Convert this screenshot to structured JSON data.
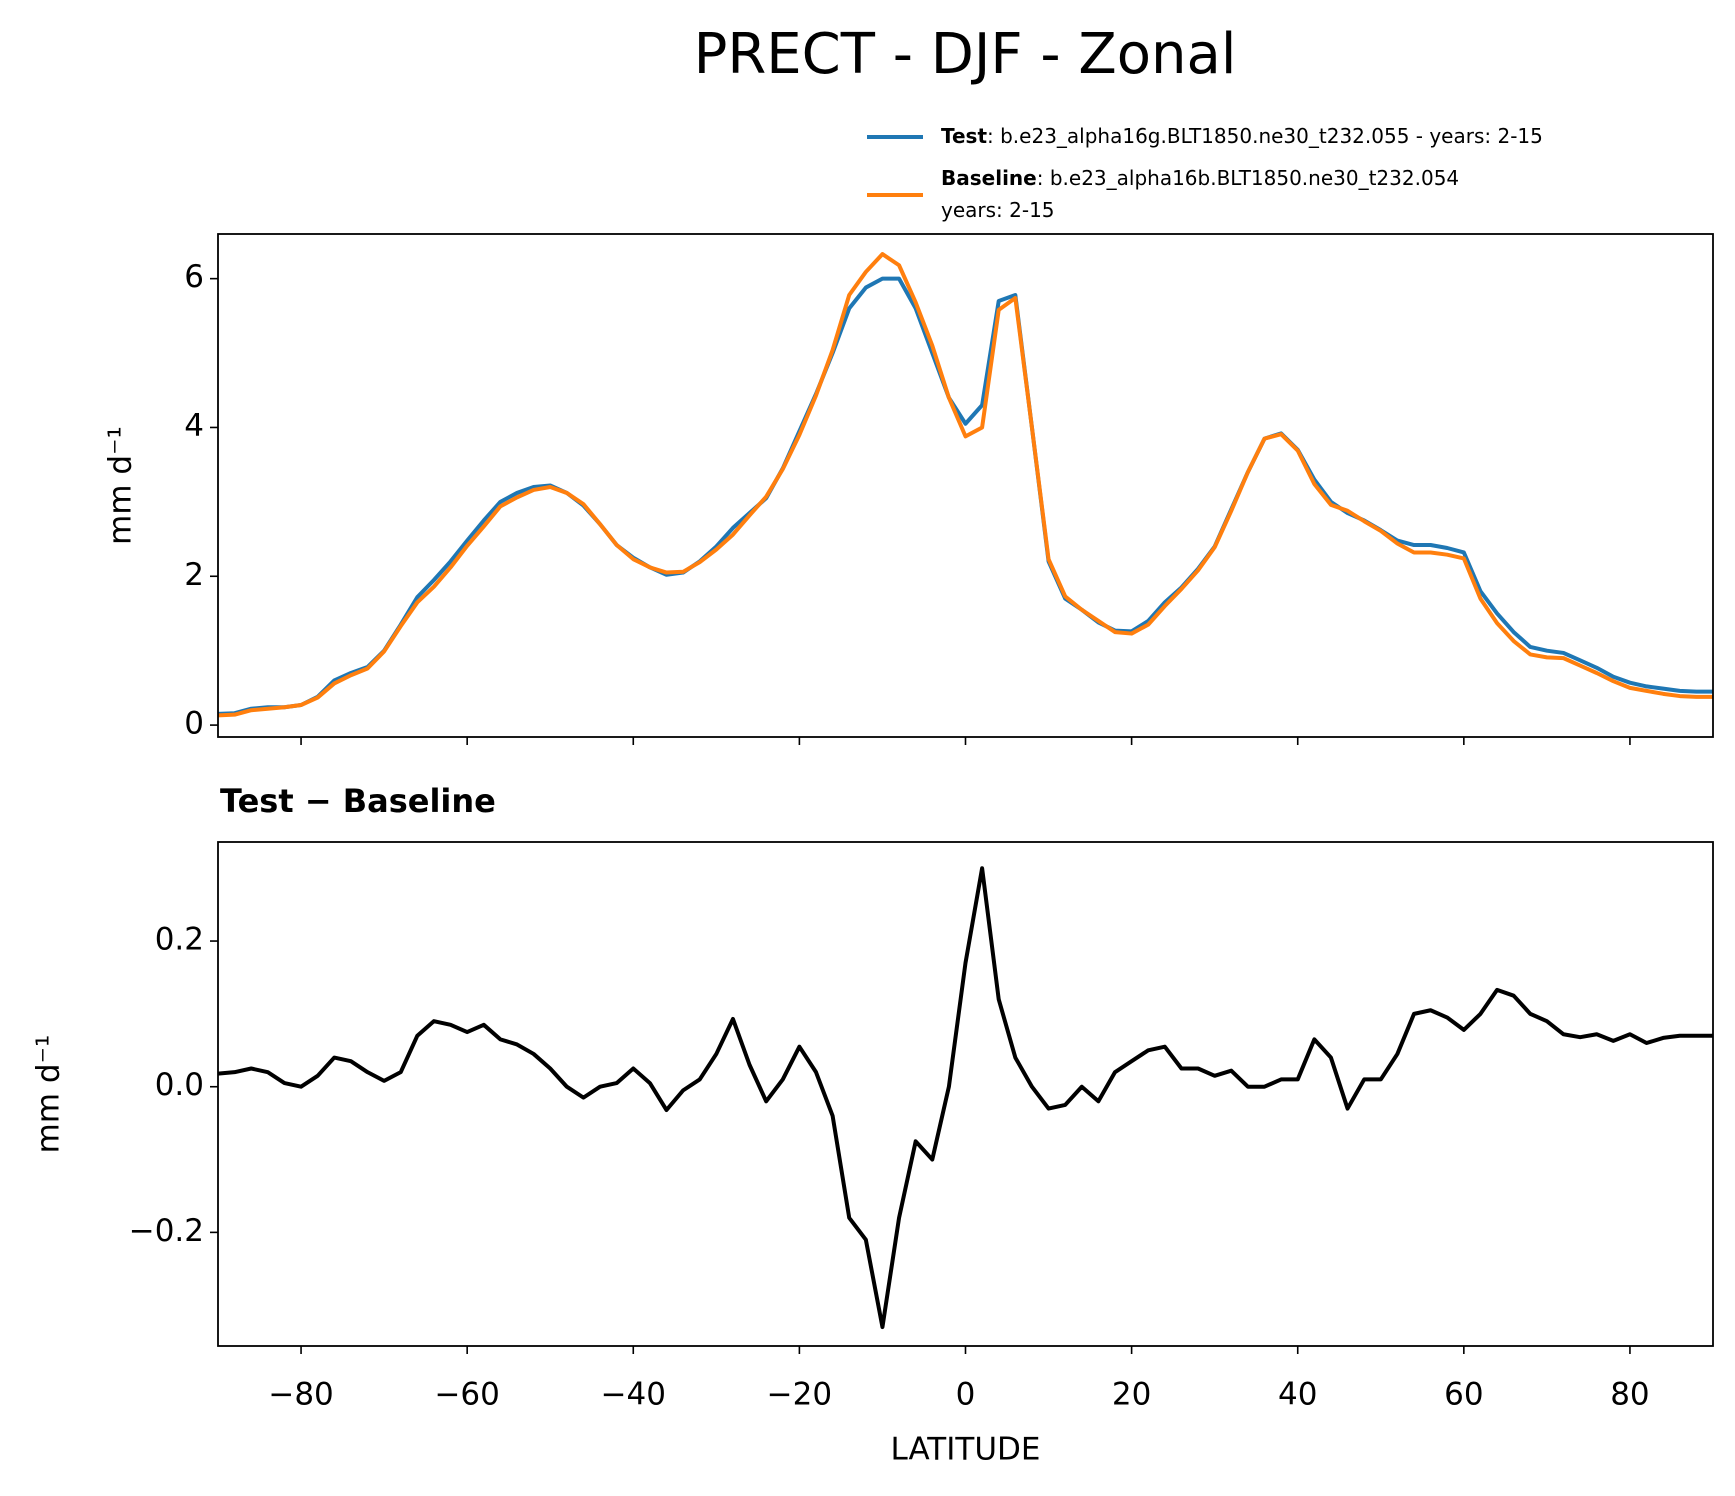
{
  "title": "PRECT - DJF - Zonal",
  "chart_data": [
    {
      "type": "line",
      "ylabel": "mm d⁻¹",
      "x": [
        -90,
        -88,
        -86,
        -84,
        -82,
        -80,
        -78,
        -76,
        -74,
        -72,
        -70,
        -68,
        -66,
        -64,
        -62,
        -60,
        -58,
        -56,
        -54,
        -52,
        -50,
        -48,
        -46,
        -44,
        -42,
        -40,
        -38,
        -36,
        -34,
        -32,
        -30,
        -28,
        -26,
        -24,
        -22,
        -20,
        -18,
        -16,
        -14,
        -12,
        -10,
        -8,
        -6,
        -4,
        -2,
        0,
        2,
        4,
        6,
        8,
        10,
        12,
        14,
        16,
        18,
        20,
        22,
        24,
        26,
        28,
        30,
        32,
        34,
        36,
        38,
        40,
        42,
        44,
        46,
        48,
        50,
        52,
        54,
        56,
        58,
        60,
        62,
        64,
        66,
        68,
        70,
        72,
        74,
        76,
        78,
        80,
        82,
        84,
        86,
        88,
        90
      ],
      "series": [
        {
          "name": "Test",
          "color": "#1f77b4",
          "description": [
            ": b.e23_alpha16g.BLT1850.ne30_t232.055 - years: 2-15"
          ],
          "values": [
            0.15,
            0.16,
            0.22,
            0.24,
            0.24,
            0.27,
            0.38,
            0.6,
            0.7,
            0.78,
            1.0,
            1.35,
            1.72,
            1.95,
            2.2,
            2.48,
            2.75,
            3.0,
            3.12,
            3.2,
            3.22,
            3.12,
            2.95,
            2.7,
            2.42,
            2.25,
            2.12,
            2.02,
            2.05,
            2.2,
            2.4,
            2.65,
            2.85,
            3.05,
            3.45,
            3.95,
            4.45,
            5.0,
            5.6,
            5.88,
            6.0,
            6.0,
            5.6,
            5.0,
            4.4,
            4.05,
            4.3,
            5.7,
            5.78,
            4.0,
            2.2,
            1.7,
            1.55,
            1.38,
            1.27,
            1.26,
            1.4,
            1.65,
            1.85,
            2.1,
            2.4,
            2.9,
            3.4,
            3.85,
            3.92,
            3.7,
            3.3,
            3.0,
            2.85,
            2.75,
            2.62,
            2.48,
            2.42,
            2.42,
            2.38,
            2.32,
            1.8,
            1.5,
            1.25,
            1.05,
            1.0,
            0.97,
            0.87,
            0.77,
            0.65,
            0.57,
            0.52,
            0.49,
            0.46,
            0.45,
            0.45
          ]
        },
        {
          "name": "Baseline",
          "color": "#ff7f0e",
          "description": [
            ": b.e23_alpha16b.BLT1850.ne30_t232.054",
            "years: 2-15"
          ],
          "values": [
            0.13,
            0.14,
            0.2,
            0.22,
            0.24,
            0.27,
            0.37,
            0.56,
            0.67,
            0.76,
            0.99,
            1.33,
            1.65,
            1.86,
            2.12,
            2.41,
            2.67,
            2.94,
            3.06,
            3.16,
            3.2,
            3.12,
            2.97,
            2.7,
            2.42,
            2.23,
            2.12,
            2.05,
            2.06,
            2.19,
            2.36,
            2.56,
            2.82,
            3.07,
            3.44,
            3.9,
            4.43,
            5.04,
            5.78,
            6.09,
            6.33,
            6.18,
            5.68,
            5.1,
            4.4,
            3.88,
            4.0,
            5.58,
            5.74,
            4.0,
            2.23,
            1.73,
            1.55,
            1.4,
            1.25,
            1.23,
            1.35,
            1.6,
            1.83,
            2.08,
            2.39,
            2.88,
            3.4,
            3.85,
            3.91,
            3.69,
            3.24,
            2.96,
            2.88,
            2.74,
            2.61,
            2.44,
            2.32,
            2.32,
            2.29,
            2.24,
            1.7,
            1.37,
            1.13,
            0.95,
            0.91,
            0.9,
            0.8,
            0.7,
            0.59,
            0.5,
            0.46,
            0.42,
            0.39,
            0.38,
            0.38
          ]
        }
      ],
      "xlim": [
        -90,
        90
      ],
      "xticks": [
        -80,
        -60,
        -40,
        -20,
        0,
        20,
        40,
        60,
        80
      ],
      "ylim": [
        -0.16,
        6.6
      ],
      "yticks": [
        0,
        2,
        4,
        6
      ],
      "legend": "top-right"
    },
    {
      "type": "line",
      "title": "Test − Baseline",
      "xlabel": "LATITUDE",
      "ylabel": "mm d⁻¹",
      "x": [
        -90,
        -88,
        -86,
        -84,
        -82,
        -80,
        -78,
        -76,
        -74,
        -72,
        -70,
        -68,
        -66,
        -64,
        -62,
        -60,
        -58,
        -56,
        -54,
        -52,
        -50,
        -48,
        -46,
        -44,
        -42,
        -40,
        -38,
        -36,
        -34,
        -32,
        -30,
        -28,
        -26,
        -24,
        -22,
        -20,
        -18,
        -16,
        -14,
        -12,
        -10,
        -8,
        -6,
        -4,
        -2,
        0,
        2,
        4,
        6,
        8,
        10,
        12,
        14,
        16,
        18,
        20,
        22,
        24,
        26,
        28,
        30,
        32,
        34,
        36,
        38,
        40,
        42,
        44,
        46,
        48,
        50,
        52,
        54,
        56,
        58,
        60,
        62,
        64,
        66,
        68,
        70,
        72,
        74,
        76,
        78,
        80,
        82,
        84,
        86,
        88,
        90
      ],
      "series": [
        {
          "color": "#000000",
          "values": [
            0.018,
            0.02,
            0.025,
            0.02,
            0.005,
            0.0,
            0.015,
            0.04,
            0.035,
            0.02,
            0.008,
            0.02,
            0.07,
            0.09,
            0.085,
            0.075,
            0.085,
            0.065,
            0.058,
            0.045,
            0.025,
            0.0,
            -0.015,
            0.0,
            0.005,
            0.025,
            0.005,
            -0.032,
            -0.005,
            0.01,
            0.045,
            0.093,
            0.03,
            -0.02,
            0.01,
            0.055,
            0.02,
            -0.04,
            -0.18,
            -0.21,
            -0.33,
            -0.18,
            -0.075,
            -0.1,
            0.0,
            0.17,
            0.3,
            0.12,
            0.04,
            0.0,
            -0.03,
            -0.025,
            0.0,
            -0.02,
            0.02,
            0.035,
            0.05,
            0.055,
            0.025,
            0.025,
            0.015,
            0.022,
            0.0,
            0.0,
            0.01,
            0.01,
            0.065,
            0.04,
            -0.03,
            0.01,
            0.01,
            0.045,
            0.1,
            0.105,
            0.095,
            0.078,
            0.1,
            0.133,
            0.125,
            0.1,
            0.09,
            0.072,
            0.068,
            0.072,
            0.063,
            0.072,
            0.06,
            0.067,
            0.07,
            0.07,
            0.07
          ]
        }
      ],
      "xlim": [
        -90,
        90
      ],
      "xticks": [
        {
          "value": -80,
          "label": "−80"
        },
        {
          "value": -60,
          "label": "−60"
        },
        {
          "value": -40,
          "label": "−40"
        },
        {
          "value": -20,
          "label": "−20"
        },
        0,
        20,
        40,
        60,
        80
      ],
      "ylim": [
        -0.356,
        0.336
      ],
      "yticks": [
        {
          "value": -0.2,
          "label": "−0.2"
        },
        {
          "value": 0,
          "label": "0.0"
        },
        0.2
      ]
    }
  ]
}
